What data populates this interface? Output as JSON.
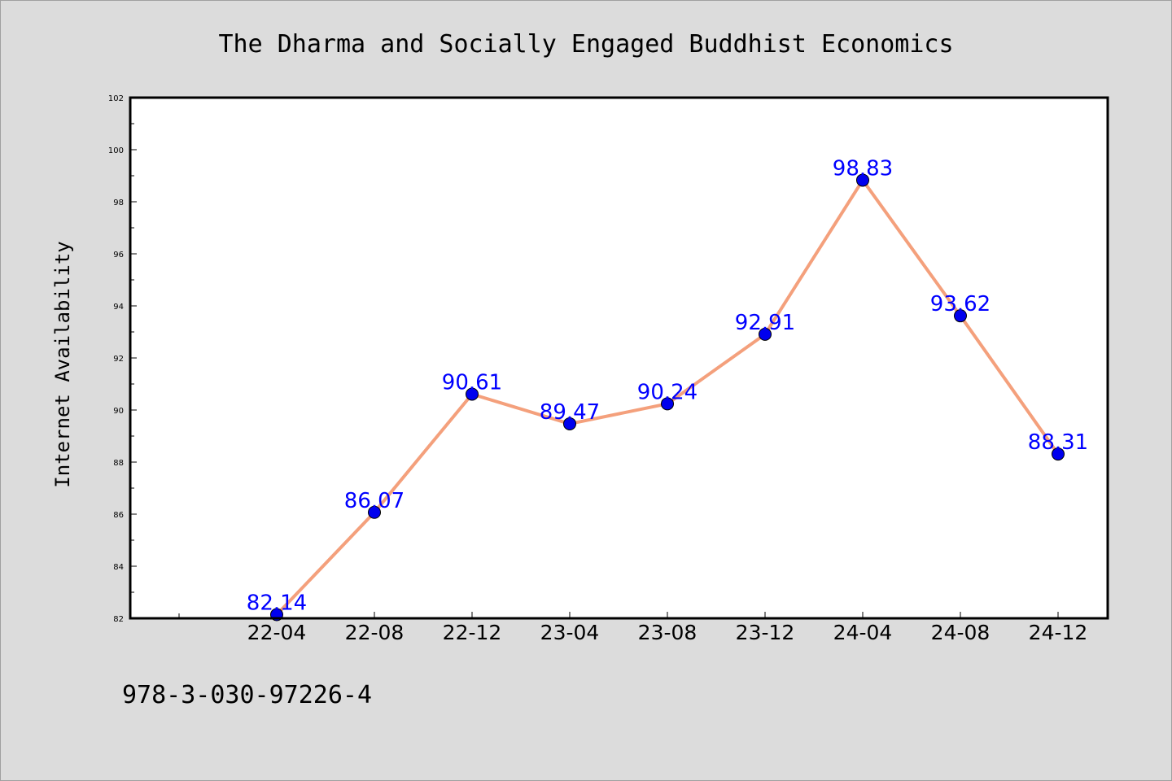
{
  "chart_data": {
    "type": "line",
    "title": "The Dharma and Socially Engaged Buddhist Economics",
    "xlabel": "",
    "ylabel": "Internet Availability",
    "categories": [
      "22-04",
      "22-08",
      "22-12",
      "23-04",
      "23-08",
      "23-12",
      "24-04",
      "24-08",
      "24-12"
    ],
    "series": [
      {
        "values": [
          82.14,
          86.07,
          90.61,
          89.47,
          90.24,
          92.91,
          98.83,
          93.62,
          88.31
        ]
      }
    ],
    "data_labels": [
      "82.14",
      "86.07",
      "90.61",
      "89.47",
      "90.24",
      "92.91",
      "98.83",
      "93.62",
      "88.31"
    ],
    "ylim": [
      82,
      102
    ],
    "yticks": [
      82,
      84,
      86,
      88,
      90,
      92,
      94,
      96,
      98,
      100,
      102
    ],
    "ytick_labels": [
      "82",
      "84",
      "86",
      "88",
      "90",
      "92",
      "94",
      "96",
      "98",
      "100",
      "102"
    ],
    "grid": false,
    "legend": "none",
    "colors": {
      "line": "#f4a07c",
      "marker": "#0000ee",
      "data_label": "#0000ff",
      "background": "#dcdcdc",
      "plot_background": "#ffffff"
    }
  },
  "footer": {
    "isbn": "978-3-030-97226-4"
  }
}
